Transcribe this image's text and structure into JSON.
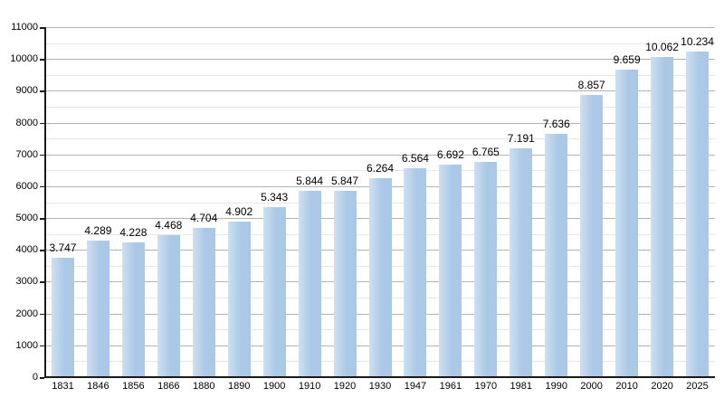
{
  "chart_data": {
    "type": "bar",
    "title": "",
    "xlabel": "",
    "ylabel": "",
    "categories": [
      "1831",
      "1846",
      "1856",
      "1866",
      "1880",
      "1890",
      "1900",
      "1910",
      "1920",
      "1930",
      "1947",
      "1961",
      "1970",
      "1981",
      "1990",
      "2000",
      "2010",
      "2020",
      "2025"
    ],
    "values": [
      3747,
      4289,
      4228,
      4468,
      4704,
      4902,
      5343,
      5844,
      5847,
      6264,
      6564,
      6692,
      6765,
      7191,
      7636,
      8857,
      9659,
      10062,
      10234
    ],
    "value_labels": [
      "3.747",
      "4.289",
      "4.228",
      "4.468",
      "4.704",
      "4.902",
      "5.343",
      "5.844",
      "5.847",
      "6.264",
      "6.564",
      "6.692",
      "6.765",
      "7.191",
      "7.636",
      "8.857",
      "9.659",
      "10.062",
      "10.234"
    ],
    "ylim": [
      0,
      11000
    ],
    "y_major_step": 1000,
    "y_minor_step": 500,
    "y_tick_labels": [
      "0",
      "1000",
      "2000",
      "3000",
      "4000",
      "5000",
      "6000",
      "7000",
      "8000",
      "9000",
      "10000",
      "11000"
    ],
    "grid": "horizontal, major and minor lines",
    "legend": "none",
    "colors": {
      "bar_fill": "#abc9e7",
      "bar_fill_light": "#cfe0f2",
      "major_grid": "#b3b3b3",
      "minor_grid": "#e7e7e7",
      "axis": "#1a1a1a",
      "text": "#000000",
      "background": "#ffffff"
    }
  }
}
